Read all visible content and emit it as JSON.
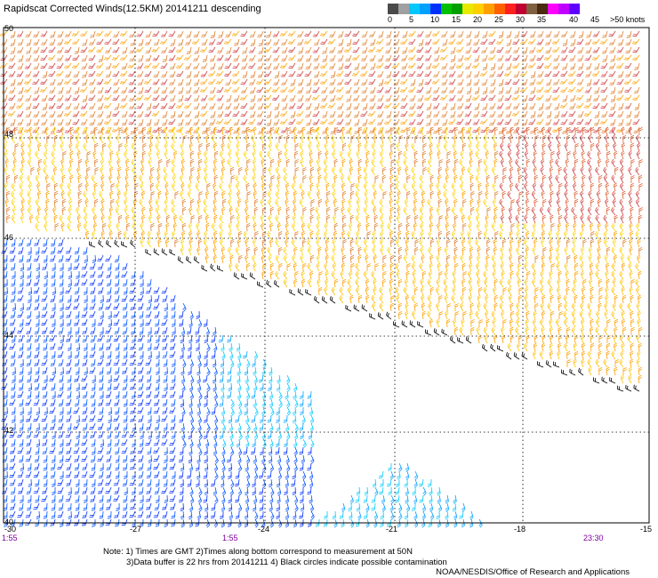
{
  "title": "Rapidscat Corrected Winds(12.5KM) 20141211 descending",
  "legend": {
    "labels": [
      "0",
      "5",
      "10",
      "15",
      "20",
      "25",
      "30",
      "35",
      "40",
      "45",
      ">50 knots"
    ],
    "colors": [
      "#4a4a4a",
      "#a0a0a0",
      "#00c8ff",
      "#00a0ff",
      "#0030ff",
      "#00c000",
      "#00a000",
      "#e8e800",
      "#ffd000",
      "#ffa000",
      "#ff6000",
      "#ff2020",
      "#c00030",
      "#806040",
      "#4a2a10",
      "#ff00ff",
      "#c000ff",
      "#6000ff"
    ]
  },
  "map": {
    "lat_labels": [
      "50",
      "48",
      "46",
      "44",
      "42",
      "40"
    ],
    "lon_labels": [
      "-30",
      "-27",
      "-24",
      "-21",
      "-18",
      "-15"
    ],
    "time_labels": [
      "1:55",
      "1:55",
      "23:30"
    ],
    "time_color": "#8000a0"
  },
  "notes": {
    "line1": "Note: 1) Times are GMT 2)Times along bottom correspond to measurement at 50N",
    "line2": "3)Data buffer is 22 hrs from 20141211 4) Black circles indicate possible contamination"
  },
  "credit": "NOAA/NESDIS/Office of Research and Applications"
}
